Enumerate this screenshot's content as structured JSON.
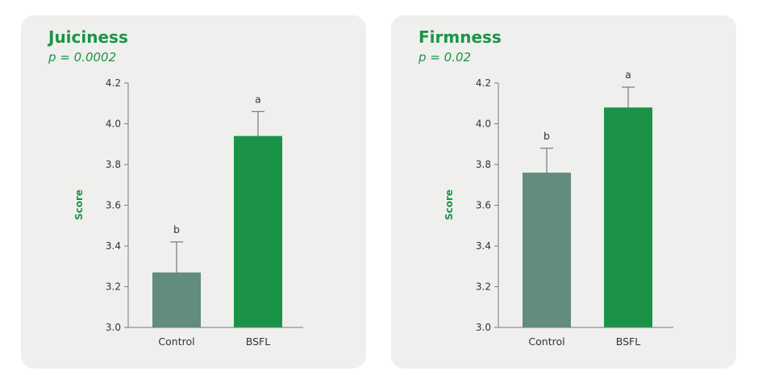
{
  "chart_data": [
    {
      "type": "bar",
      "title": "Juiciness",
      "subtitle": "p = 0.0002",
      "ylabel": "Score",
      "xlabel": "",
      "ylim": [
        3.0,
        4.2
      ],
      "yticks": [
        3.0,
        3.2,
        3.4,
        3.6,
        3.8,
        4.0,
        4.2
      ],
      "ytick_labels": [
        "3.0",
        "3.2",
        "3.4",
        "3.6",
        "3.8",
        "4.0",
        "4.2"
      ],
      "categories": [
        "Control",
        "BSFL"
      ],
      "values": [
        3.27,
        3.94
      ],
      "error": [
        0.15,
        0.12
      ],
      "significance": [
        "b",
        "a"
      ],
      "colors": [
        "#628c7b",
        "#1a9346"
      ],
      "grid": false,
      "legend": "none"
    },
    {
      "type": "bar",
      "title": "Firmness",
      "subtitle": "p = 0.02",
      "ylabel": "Score",
      "xlabel": "",
      "ylim": [
        3.0,
        4.2
      ],
      "yticks": [
        3.0,
        3.2,
        3.4,
        3.6,
        3.8,
        4.0,
        4.2
      ],
      "ytick_labels": [
        "3.0",
        "3.2",
        "3.4",
        "3.6",
        "3.8",
        "4.0",
        "4.2"
      ],
      "categories": [
        "Control",
        "BSFL"
      ],
      "values": [
        3.76,
        4.08
      ],
      "error": [
        0.12,
        0.1
      ],
      "significance": [
        "b",
        "a"
      ],
      "colors": [
        "#628c7b",
        "#1a9346"
      ],
      "grid": false,
      "legend": "none"
    }
  ],
  "colors": {
    "panel_background": "#efefed",
    "title": "#1b9446",
    "axis": "#7a7a7a",
    "text": "#333333"
  }
}
